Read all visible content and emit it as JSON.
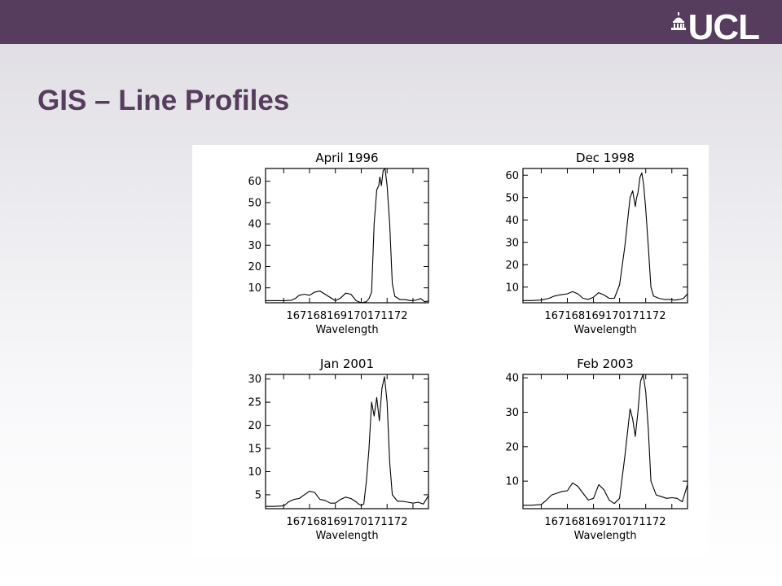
{
  "slide": {
    "title": "GIS – Line Profiles",
    "logo_text": "UCL",
    "colors": {
      "bar": "#563d5d",
      "title": "#563d5d",
      "logo": "#ffffff"
    },
    "icons": {
      "logo": "ucl-dome-icon"
    }
  },
  "chart_data": [
    {
      "type": "line",
      "title": "April 1996",
      "xlabel": "Wavelength",
      "ylabel": "",
      "xlim": [
        166.3,
        172.6
      ],
      "ylim": [
        3,
        66
      ],
      "xticks": [
        167,
        168,
        169,
        170,
        171,
        172
      ],
      "xtick_labels": [
        "167",
        "168",
        "169",
        "170",
        "171",
        "172"
      ],
      "yticks": [
        10,
        20,
        30,
        40,
        50,
        60
      ],
      "series": [
        {
          "x": [
            166.3,
            166.6,
            167.0,
            167.3,
            167.45,
            167.6,
            167.8,
            168.0,
            168.2,
            168.4,
            168.6,
            168.8,
            169.0,
            169.2,
            169.4,
            169.6,
            169.8,
            170.0,
            170.2,
            170.3,
            170.4,
            170.5,
            170.6,
            170.68,
            170.72,
            170.78,
            170.85,
            170.92,
            171.0,
            171.1,
            171.2,
            171.3,
            171.5,
            171.7,
            171.9,
            172.1,
            172.3,
            172.45,
            172.6
          ],
          "y": [
            4,
            4,
            4,
            4.2,
            5,
            6.5,
            7,
            6.5,
            8,
            8.5,
            7,
            5.5,
            4,
            5.2,
            7.5,
            7,
            4,
            3,
            3.5,
            5,
            8,
            40,
            56,
            58,
            62,
            58,
            65,
            66,
            58,
            40,
            12,
            6,
            4.5,
            4.5,
            4,
            4.2,
            5,
            3.5,
            3.8
          ]
        }
      ]
    },
    {
      "type": "line",
      "title": "Dec 1998",
      "xlabel": "Wavelength",
      "ylabel": "",
      "xlim": [
        166.3,
        172.6
      ],
      "ylim": [
        3,
        63
      ],
      "xticks": [
        167,
        168,
        169,
        170,
        171,
        172
      ],
      "xtick_labels": [
        "167",
        "168",
        "169",
        "170",
        "171",
        "172"
      ],
      "yticks": [
        10,
        20,
        30,
        40,
        50,
        60
      ],
      "series": [
        {
          "x": [
            166.3,
            166.6,
            167.0,
            167.3,
            167.5,
            167.7,
            168.0,
            168.2,
            168.4,
            168.6,
            168.8,
            169.0,
            169.2,
            169.4,
            169.6,
            169.8,
            170.0,
            170.2,
            170.4,
            170.5,
            170.6,
            170.65,
            170.7,
            170.78,
            170.85,
            170.92,
            171.0,
            171.1,
            171.2,
            171.3,
            171.5,
            171.7,
            171.9,
            172.1,
            172.3,
            172.45,
            172.6
          ],
          "y": [
            4,
            4,
            4.2,
            5,
            6,
            6.5,
            7,
            8,
            7,
            5,
            4.5,
            5.5,
            7.5,
            6.5,
            5,
            5,
            11,
            28,
            50,
            53,
            46,
            50,
            52,
            59,
            61,
            56,
            45,
            28,
            10,
            6,
            5,
            4.5,
            4.5,
            4.2,
            4.5,
            5,
            7
          ]
        }
      ]
    },
    {
      "type": "line",
      "title": "Jan 2001",
      "xlabel": "Wavelength",
      "ylabel": "",
      "xlim": [
        166.3,
        172.6
      ],
      "ylim": [
        2,
        31
      ],
      "xticks": [
        167,
        168,
        169,
        170,
        171,
        172
      ],
      "xtick_labels": [
        "167",
        "168",
        "169",
        "170",
        "171",
        "172"
      ],
      "yticks": [
        5,
        10,
        15,
        20,
        25,
        30
      ],
      "series": [
        {
          "x": [
            166.3,
            166.6,
            167.0,
            167.2,
            167.4,
            167.6,
            167.8,
            168.0,
            168.2,
            168.4,
            168.6,
            168.8,
            169.0,
            169.2,
            169.4,
            169.6,
            169.8,
            169.9,
            170.0,
            170.1,
            170.2,
            170.3,
            170.4,
            170.5,
            170.6,
            170.7,
            170.8,
            170.9,
            171.0,
            171.1,
            171.2,
            171.4,
            171.6,
            171.8,
            172.0,
            172.2,
            172.4,
            172.6
          ],
          "y": [
            2.5,
            2.5,
            2.6,
            3.5,
            4,
            4.2,
            5,
            5.8,
            5.5,
            4,
            3.8,
            3.2,
            3.2,
            4,
            4.5,
            4.2,
            3.5,
            3,
            2.7,
            3,
            8,
            15,
            25,
            22,
            26,
            21,
            28,
            30.5,
            25,
            12,
            5,
            3.6,
            3.6,
            3.4,
            3.2,
            3.4,
            3,
            4.8
          ]
        }
      ]
    },
    {
      "type": "line",
      "title": "Feb 2003",
      "xlabel": "Wavelength",
      "ylabel": "",
      "xlim": [
        166.3,
        172.6
      ],
      "ylim": [
        2,
        41
      ],
      "xticks": [
        167,
        168,
        169,
        170,
        171,
        172
      ],
      "xtick_labels": [
        "167",
        "168",
        "169",
        "170",
        "171",
        "172"
      ],
      "yticks": [
        10,
        20,
        30,
        40
      ],
      "series": [
        {
          "x": [
            166.3,
            166.6,
            167.0,
            167.2,
            167.4,
            167.6,
            167.8,
            168.0,
            168.2,
            168.4,
            168.6,
            168.8,
            169.0,
            169.2,
            169.4,
            169.6,
            169.8,
            170.0,
            170.2,
            170.4,
            170.5,
            170.6,
            170.7,
            170.8,
            170.9,
            171.0,
            171.1,
            171.2,
            171.4,
            171.6,
            171.8,
            172.0,
            172.2,
            172.4,
            172.6
          ],
          "y": [
            3,
            3,
            3.2,
            4.5,
            6,
            6.5,
            7,
            7.2,
            9.5,
            8.5,
            6.5,
            4.5,
            5,
            9,
            7.5,
            4.5,
            3.5,
            5,
            17,
            31,
            28,
            23,
            30,
            39,
            41,
            36,
            25,
            10,
            6,
            5.5,
            5,
            5.2,
            5,
            4,
            9
          ]
        }
      ]
    }
  ]
}
